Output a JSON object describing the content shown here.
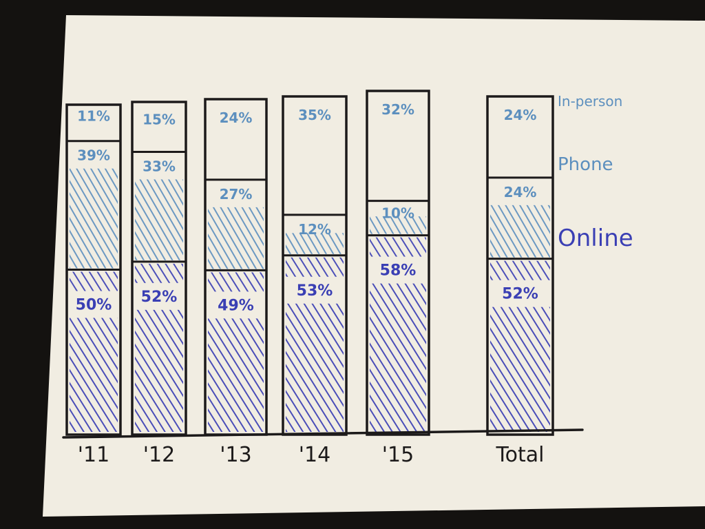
{
  "colors": {
    "background": "#141210",
    "paper": "#f1ede2",
    "ink": "#1c1a1a",
    "in_person": "#5c8fbe",
    "phone": "#5c8fbe",
    "online": "#3a3fb4"
  },
  "chart_data": {
    "type": "bar",
    "stacked": true,
    "categories": [
      "'11",
      "'12",
      "'13",
      "'14",
      "'15",
      "Total"
    ],
    "series": [
      {
        "name": "Online",
        "values": [
          50,
          52,
          49,
          53,
          58,
          52
        ],
        "labels": [
          "50%",
          "52%",
          "49%",
          "53%",
          "58%",
          "52%"
        ]
      },
      {
        "name": "Phone",
        "values": [
          39,
          33,
          27,
          12,
          10,
          24
        ],
        "labels": [
          "39%",
          "33%",
          "27%",
          "12%",
          "10%",
          "24%"
        ]
      },
      {
        "name": "In-person",
        "values": [
          11,
          15,
          24,
          35,
          32,
          24
        ],
        "labels": [
          "11%",
          "15%",
          "24%",
          "35%",
          "32%",
          "24%"
        ]
      }
    ],
    "title": "",
    "xlabel": "",
    "ylabel": "",
    "ylim": [
      0,
      100
    ],
    "grid": false,
    "legend_position": "right"
  }
}
